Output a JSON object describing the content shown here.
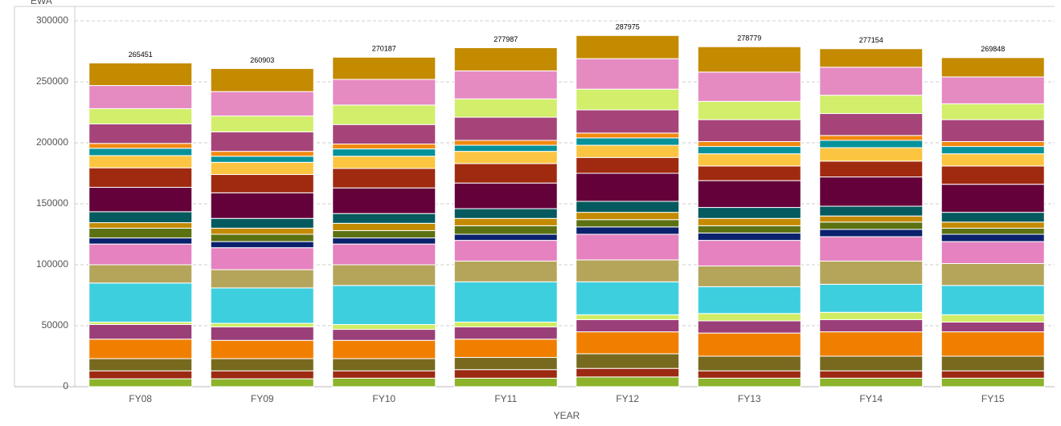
{
  "chart_data": {
    "type": "stacked-bar",
    "y_label": "EWA",
    "x_label": "YEAR",
    "categories": [
      "FY08",
      "FY09",
      "FY10",
      "FY11",
      "FY12",
      "FY13",
      "FY14",
      "FY15"
    ],
    "totals": [
      265451,
      260903,
      270187,
      277987,
      287975,
      278779,
      277154,
      269848
    ],
    "series": [
      {
        "color": "#8db32b",
        "values": [
          6500,
          6500,
          7000,
          7000,
          8000,
          7000,
          7000,
          7000
        ]
      },
      {
        "color": "#9c2a12",
        "values": [
          6500,
          6500,
          6000,
          7000,
          7000,
          6000,
          6000,
          6000
        ]
      },
      {
        "color": "#776a1f",
        "values": [
          10000,
          10000,
          10000,
          10000,
          12000,
          12000,
          12000,
          12000
        ]
      },
      {
        "color": "#f07f00",
        "values": [
          16000,
          15000,
          15000,
          15000,
          18000,
          19000,
          20000,
          20000
        ]
      },
      {
        "color": "#9b3f79",
        "values": [
          12000,
          11000,
          9000,
          10000,
          10000,
          10000,
          10000,
          8000
        ]
      },
      {
        "color": "#cfec64",
        "values": [
          2000,
          3000,
          4000,
          4000,
          4000,
          6000,
          6000,
          6000
        ]
      },
      {
        "color": "#3ecfdf",
        "values": [
          32000,
          29000,
          32000,
          33000,
          27000,
          22000,
          23000,
          24000
        ]
      },
      {
        "color": "#b5a55b",
        "values": [
          15000,
          15000,
          17000,
          17000,
          18000,
          17000,
          19000,
          18000
        ]
      },
      {
        "color": "#e582bf",
        "values": [
          17000,
          18000,
          17000,
          17000,
          21000,
          21000,
          20000,
          18000
        ]
      },
      {
        "color": "#0a216d",
        "values": [
          5000,
          5000,
          5000,
          5000,
          6000,
          6000,
          6000,
          6000
        ]
      },
      {
        "color": "#5c7212",
        "values": [
          8000,
          6000,
          6000,
          7000,
          6000,
          6000,
          6000,
          5000
        ]
      },
      {
        "color": "#c48a00",
        "values": [
          4500,
          5000,
          6000,
          6000,
          6000,
          6000,
          5000,
          5000
        ]
      },
      {
        "color": "#045a5e",
        "values": [
          9000,
          8000,
          8000,
          8000,
          9000,
          9000,
          8000,
          8000
        ]
      },
      {
        "color": "#64003a",
        "values": [
          20000,
          21000,
          21000,
          21000,
          23000,
          22000,
          24000,
          23000
        ]
      },
      {
        "color": "#a02a10",
        "values": [
          16000,
          15000,
          16000,
          16000,
          13000,
          12000,
          13000,
          15000
        ]
      },
      {
        "color": "#fcc541",
        "values": [
          10000,
          10000,
          10000,
          10000,
          10000,
          10000,
          11000,
          10000
        ]
      },
      {
        "color": "#06929a",
        "values": [
          6000,
          5000,
          6000,
          5000,
          6000,
          6000,
          6000,
          6000
        ]
      },
      {
        "color": "#f28a10",
        "values": [
          4000,
          4000,
          4000,
          4000,
          4000,
          4000,
          4000,
          4000
        ]
      },
      {
        "color": "#a64479",
        "values": [
          16000,
          16000,
          16000,
          19000,
          19000,
          18000,
          18000,
          18000
        ]
      },
      {
        "color": "#d2ee6a",
        "values": [
          12500,
          13000,
          16000,
          15000,
          17000,
          15000,
          15000,
          13000
        ]
      },
      {
        "color": "#e68ac2",
        "values": [
          19000,
          20000,
          21000,
          23000,
          25000,
          24000,
          23000,
          22000
        ]
      },
      {
        "color": "#c48a00",
        "values": [
          18451,
          18903,
          18187,
          18987,
          18975,
          20779,
          15154,
          15848
        ]
      }
    ],
    "ylim": [
      0,
      300000
    ],
    "yticks": [
      0,
      50000,
      100000,
      150000,
      200000,
      250000,
      300000
    ],
    "grid": true
  }
}
